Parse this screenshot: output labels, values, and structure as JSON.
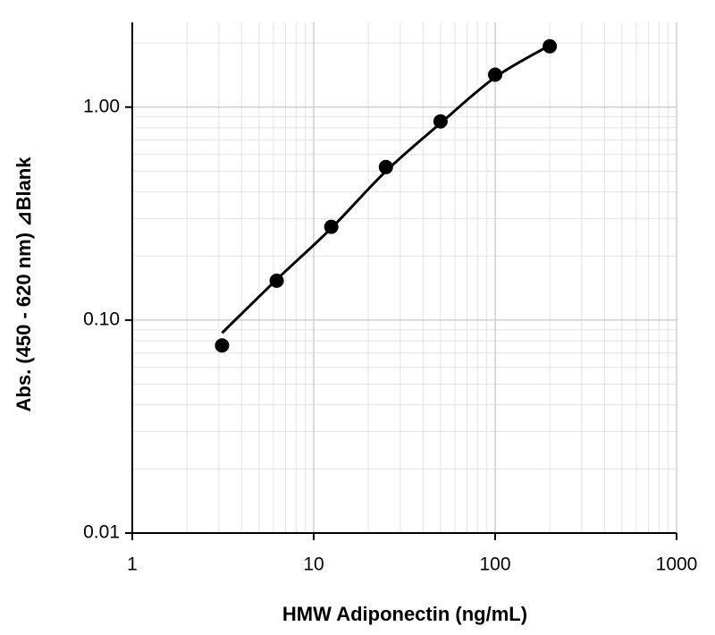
{
  "chart_data": {
    "type": "scatter",
    "x_label": "HMW Adiponectin (ng/mL)",
    "y_label": "Abs. (450 - 620 nm) ⊿Blank",
    "x": [
      3.125,
      6.25,
      12.5,
      25,
      50,
      100,
      200
    ],
    "series": [
      {
        "type": "scatter",
        "color": "#000000",
        "values": [
          0.076,
          0.153,
          0.274,
          0.523,
          0.857,
          1.42,
          1.93
        ]
      },
      {
        "type": "line",
        "color": "#000000",
        "values": [
          0.087,
          0.155,
          0.27,
          0.5,
          0.84,
          1.38,
          1.95
        ]
      }
    ],
    "xlim": [
      1,
      1000
    ],
    "ylim": [
      0.01,
      2.5
    ],
    "xticks": [
      1,
      10,
      100,
      1000
    ],
    "yticks": [
      0.01,
      {
        "value": 0.1,
        "label": "0.10"
      },
      {
        "value": 1,
        "label": "1.00"
      }
    ],
    "x_log": true,
    "y_log": true,
    "grid": true,
    "minor_grid": true
  }
}
